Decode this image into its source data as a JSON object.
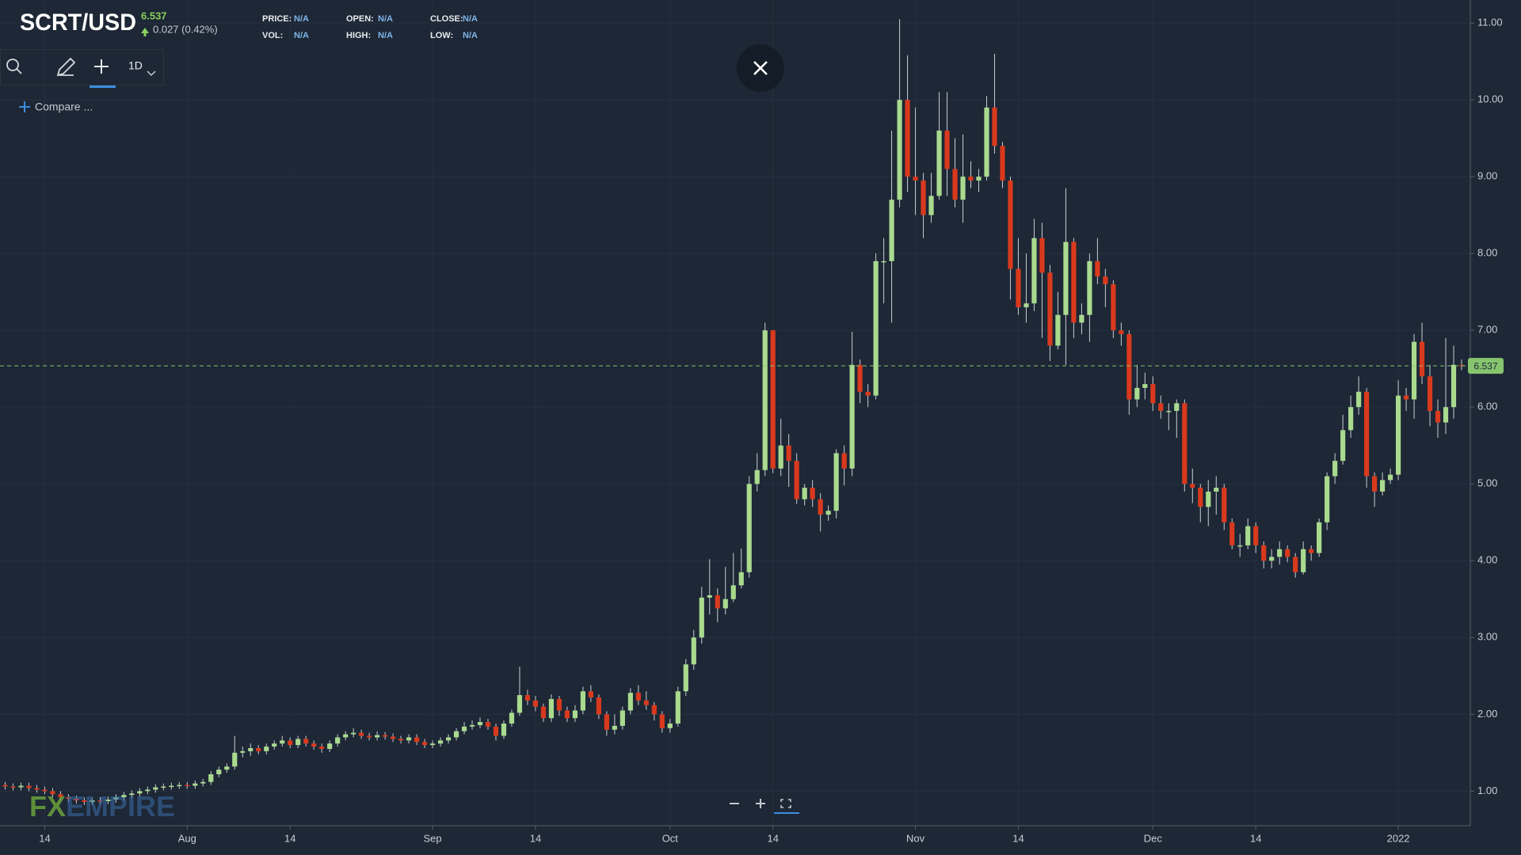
{
  "header": {
    "symbol": "SCRT/USD",
    "change": "0.027 (0.42%)",
    "fields": [
      {
        "label": "PRICE:",
        "value": "N/A"
      },
      {
        "label": "OPEN:",
        "value": "N/A"
      },
      {
        "label": "CLOSE:",
        "value": "N/A"
      },
      {
        "label": "VOL:",
        "value": "N/A"
      },
      {
        "label": "HIGH:",
        "value": "N/A"
      },
      {
        "label": "LOW:",
        "value": "N/A"
      }
    ]
  },
  "toolbar": {
    "interval": "1D",
    "compare": "Compare ..."
  },
  "watermark": {
    "fx": "FX",
    "empire": "EMPIRE"
  },
  "chart_data": {
    "type": "candlestick",
    "up_color": "#a9da8e",
    "down_color": "#d9391d",
    "grid": true,
    "last_price": 6.537,
    "last_price_color": "#86c56e",
    "ylim": [
      0.55,
      11.3
    ],
    "yticks": [
      {
        "value": 1,
        "label": "1.00"
      },
      {
        "value": 2,
        "label": "2.00"
      },
      {
        "value": 3,
        "label": "3.00"
      },
      {
        "value": 4,
        "label": "4.00"
      },
      {
        "value": 5,
        "label": "5.00"
      },
      {
        "value": 6,
        "label": "6.00"
      },
      {
        "value": 7,
        "label": "7.00"
      },
      {
        "value": 8,
        "label": "8.00"
      },
      {
        "value": 9,
        "label": "9.00"
      },
      {
        "value": 10,
        "label": "10.00"
      },
      {
        "value": 11,
        "label": "11.00"
      }
    ],
    "categories": [
      null,
      null,
      null,
      null,
      null,
      "14",
      null,
      null,
      null,
      null,
      null,
      null,
      null,
      null,
      null,
      null,
      null,
      null,
      null,
      null,
      null,
      null,
      null,
      "Aug",
      null,
      null,
      null,
      null,
      null,
      null,
      null,
      null,
      null,
      null,
      null,
      null,
      "14",
      null,
      null,
      null,
      null,
      null,
      null,
      null,
      null,
      null,
      null,
      null,
      null,
      null,
      null,
      null,
      null,
      null,
      "Sep",
      null,
      null,
      null,
      null,
      null,
      null,
      null,
      null,
      null,
      null,
      null,
      null,
      "14",
      null,
      null,
      null,
      null,
      null,
      null,
      null,
      null,
      null,
      null,
      null,
      null,
      null,
      null,
      null,
      null,
      "Oct",
      null,
      null,
      null,
      null,
      null,
      null,
      null,
      null,
      null,
      null,
      null,
      null,
      "14",
      null,
      null,
      null,
      null,
      null,
      null,
      null,
      null,
      null,
      null,
      null,
      null,
      null,
      null,
      null,
      null,
      null,
      "Nov",
      null,
      null,
      null,
      null,
      null,
      null,
      null,
      null,
      null,
      null,
      null,
      null,
      "14",
      null,
      null,
      null,
      null,
      null,
      null,
      null,
      null,
      null,
      null,
      null,
      null,
      null,
      null,
      null,
      null,
      "Dec",
      null,
      null,
      null,
      null,
      null,
      null,
      null,
      null,
      null,
      null,
      null,
      null,
      "14",
      null,
      null,
      null,
      null,
      null,
      null,
      null,
      null,
      null,
      null,
      null,
      null,
      null,
      null,
      null,
      null,
      null,
      "2022",
      null,
      null,
      null,
      null,
      null,
      null,
      null,
      null
    ],
    "open": [
      1.08,
      1.06,
      1.05,
      1.07,
      1.04,
      1.02,
      1.0,
      0.96,
      0.92,
      0.9,
      0.88,
      0.86,
      0.88,
      0.87,
      0.89,
      0.92,
      0.95,
      0.97,
      1.0,
      1.02,
      1.05,
      1.06,
      1.07,
      1.08,
      1.07,
      1.1,
      1.12,
      1.22,
      1.28,
      1.32,
      1.5,
      1.52,
      1.56,
      1.52,
      1.58,
      1.62,
      1.66,
      1.6,
      1.68,
      1.62,
      1.58,
      1.55,
      1.62,
      1.7,
      1.74,
      1.76,
      1.72,
      1.7,
      1.73,
      1.71,
      1.68,
      1.66,
      1.7,
      1.64,
      1.6,
      1.62,
      1.66,
      1.7,
      1.78,
      1.84,
      1.86,
      1.9,
      1.84,
      1.72,
      1.88,
      2.02,
      2.25,
      2.18,
      2.1,
      1.95,
      2.2,
      2.05,
      1.95,
      2.05,
      2.3,
      2.22,
      2.0,
      1.8,
      1.85,
      2.05,
      2.28,
      2.18,
      2.12,
      2.0,
      1.82,
      1.88,
      2.3,
      2.65,
      3.0,
      3.52,
      3.55,
      3.38,
      3.5,
      3.68,
      3.85,
      5.0,
      5.18,
      7.0,
      5.2,
      5.5,
      5.3,
      4.8,
      4.95,
      4.8,
      4.6,
      4.65,
      5.4,
      5.2,
      6.55,
      6.2,
      6.15,
      7.9,
      7.9,
      8.7,
      10.0,
      9.0,
      8.95,
      8.5,
      8.75,
      9.6,
      9.1,
      8.7,
      9.0,
      8.95,
      9.0,
      9.9,
      9.4,
      8.95,
      7.8,
      7.3,
      7.35,
      8.2,
      7.75,
      6.8,
      7.2,
      8.15,
      7.1,
      7.2,
      7.9,
      7.7,
      7.6,
      7.0,
      6.95,
      6.1,
      6.25,
      6.3,
      6.05,
      5.95,
      5.95,
      6.05,
      5.0,
      4.95,
      4.7,
      4.9,
      4.95,
      4.5,
      4.2,
      4.2,
      4.45,
      4.2,
      4.0,
      4.05,
      4.15,
      4.05,
      3.85,
      4.15,
      4.1,
      4.5,
      5.1,
      5.3,
      5.7,
      6.0,
      6.2,
      5.1,
      4.9,
      5.05,
      5.12,
      6.15,
      6.1,
      6.85,
      6.4,
      5.95,
      5.8,
      6.0,
      6.55
    ],
    "high": [
      1.12,
      1.1,
      1.11,
      1.11,
      1.08,
      1.06,
      1.04,
      1.0,
      0.96,
      0.94,
      0.92,
      0.92,
      0.92,
      0.93,
      0.96,
      0.99,
      1.01,
      1.04,
      1.06,
      1.09,
      1.1,
      1.11,
      1.12,
      1.12,
      1.14,
      1.16,
      1.26,
      1.32,
      1.36,
      1.72,
      1.58,
      1.62,
      1.6,
      1.62,
      1.66,
      1.72,
      1.7,
      1.72,
      1.72,
      1.66,
      1.62,
      1.66,
      1.74,
      1.78,
      1.82,
      1.8,
      1.76,
      1.78,
      1.77,
      1.75,
      1.72,
      1.74,
      1.74,
      1.68,
      1.66,
      1.7,
      1.74,
      1.82,
      1.9,
      1.92,
      1.96,
      1.94,
      1.88,
      1.92,
      2.06,
      2.62,
      2.32,
      2.24,
      2.14,
      2.26,
      2.24,
      2.1,
      2.12,
      2.36,
      2.38,
      2.26,
      2.04,
      2.0,
      2.1,
      2.34,
      2.38,
      2.3,
      2.16,
      2.04,
      1.94,
      2.36,
      2.72,
      3.1,
      3.66,
      4.02,
      3.64,
      3.92,
      4.1,
      4.16,
      5.1,
      5.4,
      7.1,
      7.0,
      5.85,
      5.65,
      5.4,
      5.0,
      5.05,
      4.88,
      4.72,
      5.45,
      5.5,
      6.98,
      6.62,
      6.3,
      8.0,
      8.2,
      9.6,
      11.05,
      10.58,
      9.9,
      9.05,
      9.05,
      10.1,
      10.1,
      9.5,
      9.55,
      9.2,
      9.1,
      10.05,
      10.6,
      9.45,
      9.0,
      8.2,
      8.0,
      8.45,
      8.4,
      7.85,
      7.5,
      8.85,
      8.2,
      7.35,
      8.0,
      8.2,
      7.8,
      7.65,
      7.1,
      7.0,
      6.55,
      6.45,
      6.4,
      6.15,
      6.05,
      6.1,
      6.1,
      5.2,
      5.0,
      5.05,
      5.1,
      5.0,
      4.55,
      4.35,
      4.55,
      4.5,
      4.25,
      4.15,
      4.25,
      4.2,
      4.1,
      4.25,
      4.2,
      4.55,
      5.15,
      5.4,
      5.9,
      6.15,
      6.4,
      6.25,
      5.15,
      5.15,
      5.2,
      6.35,
      6.25,
      6.95,
      7.1,
      6.55,
      6.1,
      6.9,
      6.8,
      6.62
    ],
    "low": [
      1.02,
      1.01,
      1.01,
      1.0,
      0.98,
      0.96,
      0.92,
      0.88,
      0.86,
      0.84,
      0.82,
      0.82,
      0.83,
      0.83,
      0.85,
      0.88,
      0.91,
      0.93,
      0.96,
      0.98,
      1.01,
      1.02,
      1.03,
      1.03,
      1.03,
      1.06,
      1.08,
      1.18,
      1.24,
      1.28,
      1.44,
      1.46,
      1.48,
      1.48,
      1.54,
      1.58,
      1.56,
      1.56,
      1.58,
      1.54,
      1.5,
      1.51,
      1.58,
      1.66,
      1.7,
      1.68,
      1.66,
      1.66,
      1.67,
      1.64,
      1.62,
      1.62,
      1.6,
      1.56,
      1.56,
      1.58,
      1.62,
      1.66,
      1.74,
      1.8,
      1.82,
      1.8,
      1.66,
      1.68,
      1.84,
      1.98,
      2.12,
      2.04,
      1.9,
      1.9,
      1.98,
      1.9,
      1.9,
      2.0,
      2.16,
      1.94,
      1.72,
      1.74,
      1.8,
      2.0,
      2.12,
      2.06,
      1.92,
      1.76,
      1.76,
      1.84,
      2.24,
      2.58,
      2.92,
      3.3,
      3.2,
      3.3,
      3.46,
      3.64,
      3.78,
      4.9,
      5.1,
      5.14,
      5.1,
      4.96,
      4.74,
      4.72,
      4.7,
      4.38,
      4.52,
      4.55,
      4.98,
      5.1,
      6.05,
      6.0,
      6.1,
      7.35,
      7.1,
      8.6,
      8.8,
      8.5,
      8.2,
      8.4,
      8.7,
      8.75,
      8.6,
      8.4,
      8.85,
      8.8,
      8.95,
      9.3,
      8.85,
      7.4,
      7.2,
      7.1,
      7.25,
      6.9,
      6.6,
      6.75,
      6.55,
      6.9,
      6.95,
      6.85,
      7.6,
      7.3,
      6.9,
      6.8,
      5.9,
      6.0,
      6.1,
      5.95,
      5.85,
      5.7,
      5.6,
      4.9,
      4.75,
      4.5,
      4.45,
      4.6,
      4.4,
      4.15,
      4.05,
      4.15,
      4.1,
      3.9,
      3.9,
      3.95,
      3.98,
      3.78,
      3.82,
      4.0,
      4.05,
      4.4,
      5.0,
      5.25,
      5.6,
      5.9,
      4.95,
      4.7,
      4.85,
      5.0,
      5.05,
      5.95,
      5.85,
      6.3,
      5.75,
      5.6,
      5.65,
      5.85,
      6.48
    ],
    "close": [
      1.06,
      1.05,
      1.07,
      1.04,
      1.02,
      1.0,
      0.96,
      0.92,
      0.9,
      0.88,
      0.86,
      0.88,
      0.87,
      0.89,
      0.92,
      0.95,
      0.97,
      1.0,
      1.02,
      1.05,
      1.06,
      1.07,
      1.08,
      1.07,
      1.1,
      1.12,
      1.22,
      1.28,
      1.32,
      1.5,
      1.52,
      1.56,
      1.52,
      1.58,
      1.62,
      1.66,
      1.6,
      1.68,
      1.62,
      1.58,
      1.55,
      1.62,
      1.7,
      1.74,
      1.76,
      1.72,
      1.7,
      1.73,
      1.71,
      1.68,
      1.66,
      1.7,
      1.64,
      1.6,
      1.62,
      1.66,
      1.7,
      1.78,
      1.84,
      1.86,
      1.9,
      1.84,
      1.72,
      1.88,
      2.02,
      2.25,
      2.18,
      2.1,
      1.95,
      2.2,
      2.05,
      1.95,
      2.05,
      2.3,
      2.22,
      2.0,
      1.8,
      1.85,
      2.05,
      2.28,
      2.18,
      2.12,
      2.0,
      1.82,
      1.88,
      2.3,
      2.65,
      3.0,
      3.52,
      3.55,
      3.38,
      3.5,
      3.68,
      3.85,
      5.0,
      5.18,
      7.0,
      5.2,
      5.5,
      5.3,
      4.8,
      4.95,
      4.8,
      4.6,
      4.65,
      5.4,
      5.2,
      6.55,
      6.2,
      6.15,
      7.9,
      7.9,
      8.7,
      10.0,
      9.0,
      8.95,
      8.5,
      8.75,
      9.6,
      9.1,
      8.7,
      9.0,
      8.95,
      9.0,
      9.9,
      9.4,
      8.95,
      7.8,
      7.3,
      7.35,
      8.2,
      7.75,
      6.8,
      7.2,
      8.15,
      7.1,
      7.2,
      7.9,
      7.7,
      7.6,
      7.0,
      6.95,
      6.1,
      6.25,
      6.3,
      6.05,
      5.95,
      5.95,
      6.05,
      5.0,
      4.95,
      4.7,
      4.9,
      4.95,
      4.5,
      4.2,
      4.2,
      4.45,
      4.2,
      4.0,
      4.05,
      4.15,
      4.05,
      3.85,
      4.15,
      4.1,
      4.5,
      5.1,
      5.3,
      5.7,
      6.0,
      6.2,
      5.1,
      4.9,
      5.05,
      5.12,
      6.15,
      6.1,
      6.85,
      6.4,
      5.95,
      5.8,
      6.0,
      6.55,
      6.537
    ]
  }
}
